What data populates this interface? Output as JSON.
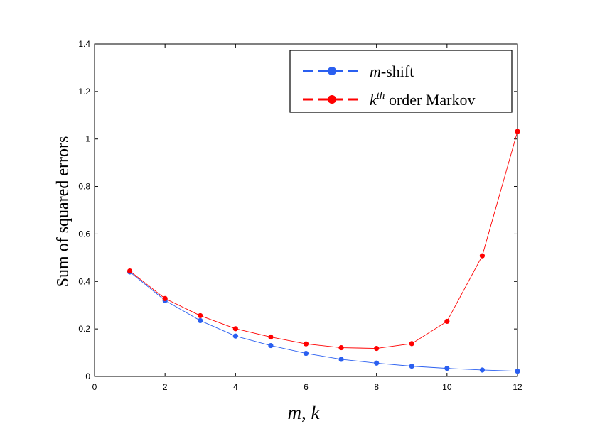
{
  "chart_data": {
    "type": "line",
    "title": "",
    "xlabel": "m, k",
    "xlabel_parts": {
      "var1": "m",
      "sep": ", ",
      "var2": "k"
    },
    "ylabel": "Sum of squared errors",
    "xlim": [
      0,
      12
    ],
    "ylim": [
      0,
      1.4
    ],
    "x_ticks": [
      0,
      2,
      4,
      6,
      8,
      10,
      12
    ],
    "x_tick_labels": [
      "0",
      "2",
      "4",
      "6",
      "8",
      "10",
      "12"
    ],
    "y_ticks": [
      0,
      0.2,
      0.4,
      0.6,
      0.8,
      1,
      1.2,
      1.4
    ],
    "y_tick_labels": [
      "0",
      "0.2",
      "0.4",
      "0.6",
      "0.8",
      "1",
      "1.2",
      "1.4"
    ],
    "grid": false,
    "legend_position": "top-right",
    "x": [
      1,
      2,
      3,
      4,
      5,
      6,
      7,
      8,
      9,
      10,
      11,
      12
    ],
    "series": [
      {
        "name": "m-shift",
        "legend_var": "m",
        "legend_rest": "-shift",
        "color": "#2a5ff0",
        "values": [
          0.44,
          0.32,
          0.235,
          0.17,
          0.13,
          0.097,
          0.072,
          0.056,
          0.043,
          0.034,
          0.027,
          0.022
        ]
      },
      {
        "name": "kth order Markov",
        "legend_var": "k",
        "legend_sup": "th",
        "legend_rest": "order Markov",
        "color": "#ff0000",
        "values": [
          0.444,
          0.328,
          0.256,
          0.201,
          0.166,
          0.137,
          0.121,
          0.118,
          0.138,
          0.232,
          0.508,
          1.032
        ]
      }
    ]
  }
}
